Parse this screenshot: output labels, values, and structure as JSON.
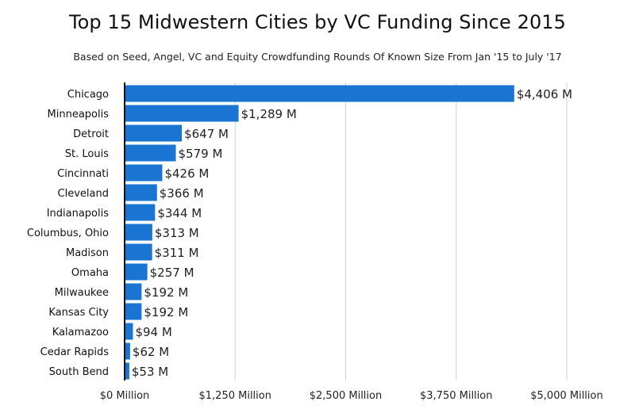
{
  "chart_data": {
    "type": "bar",
    "orientation": "horizontal",
    "title": "Top 15 Midwestern Cities by VC Funding Since 2015",
    "subtitle": "Based on Seed, Angel, VC and Equity Crowdfunding Rounds Of Known Size From Jan '15 to July '17",
    "categories": [
      "Chicago",
      "Minneapolis",
      "Detroit",
      "St. Louis",
      "Cincinnati",
      "Cleveland",
      "Indianapolis",
      "Columbus, Ohio",
      "Madison",
      "Omaha",
      "Milwaukee",
      "Kansas City",
      "Kalamazoo",
      "Cedar Rapids",
      "South Bend"
    ],
    "values": [
      4406,
      1289,
      647,
      579,
      426,
      366,
      344,
      313,
      311,
      257,
      192,
      192,
      94,
      62,
      53
    ],
    "value_labels": [
      "$4,406 M",
      "$1,289 M",
      "$647 M",
      "$579 M",
      "$426 M",
      "$366 M",
      "$344 M",
      "$313 M",
      "$311 M",
      "$257 M",
      "$192 M",
      "$192 M",
      "$94 M",
      "$62 M",
      "$53 M"
    ],
    "xlim": [
      0,
      5000
    ],
    "xticks": [
      0,
      1250,
      2500,
      3750,
      5000
    ],
    "xtick_labels": [
      "$0 Million",
      "$1,250 Million",
      "$2,500 Million",
      "$3,750 Million",
      "$5,000 Million"
    ],
    "grid": true,
    "bar_color": "#1a75d2",
    "grid_color": "#cfcfcf"
  }
}
